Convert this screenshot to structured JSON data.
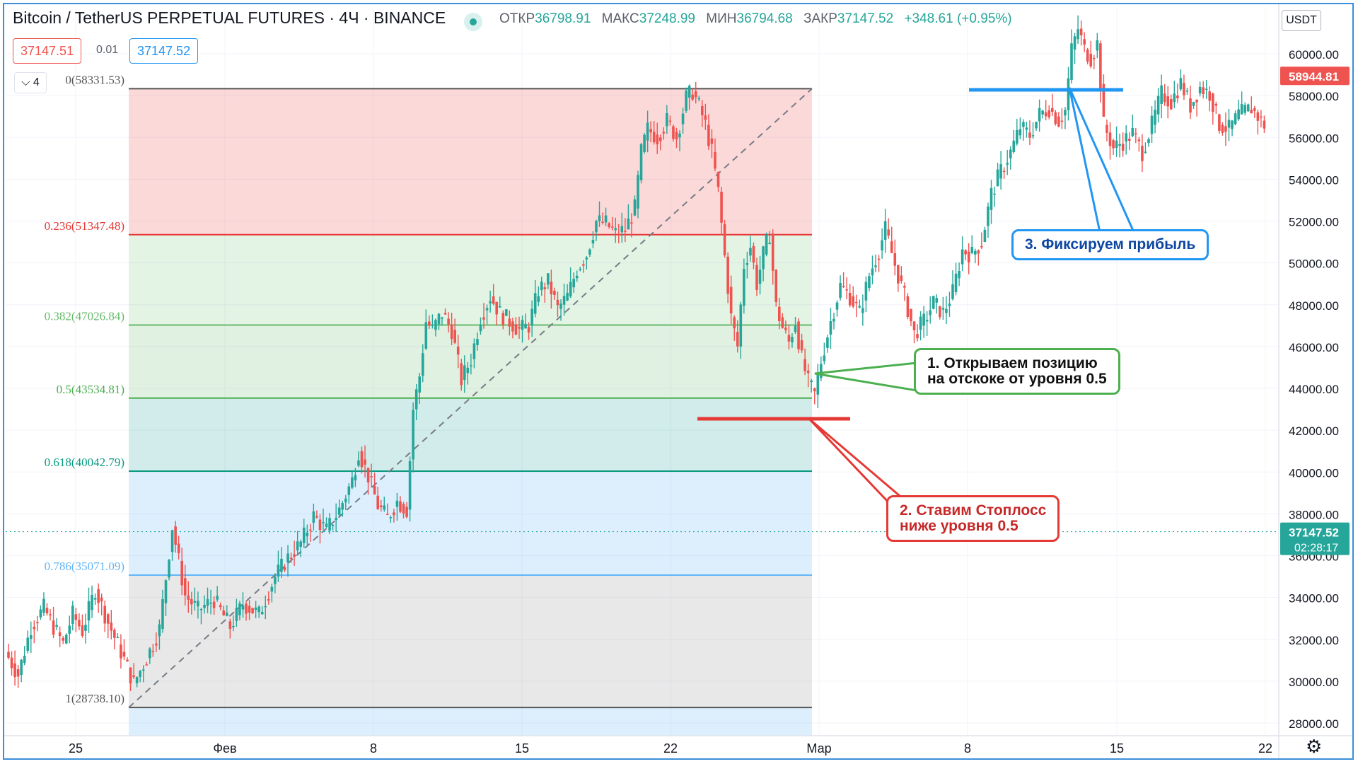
{
  "header": {
    "title": "Bitcoin / TetherUS PERPETUAL FUTURES · 4Ч · BINANCE",
    "ohlc": [
      {
        "k": "ОТКР",
        "v": "36798.91"
      },
      {
        "k": "МАКС",
        "v": "37248.99"
      },
      {
        "k": "МИН",
        "v": "36794.68"
      },
      {
        "k": "ЗАКР",
        "v": "37147.52"
      }
    ],
    "change": "+348.61 (+0.95%)",
    "sell_price": "37147.51",
    "spread": "0.01",
    "buy_price": "37147.52",
    "collapse_label": "4",
    "currency": "USDT"
  },
  "colors": {
    "up": "#26a69a",
    "down": "#ef5350",
    "bg": "#ffffff",
    "grid": "#f0f3fa"
  },
  "chart_data": {
    "type": "candlestick",
    "price_axis": {
      "min": 28000,
      "max": 60000,
      "ticks": [
        "28000.00",
        "30000.00",
        "32000.00",
        "34000.00",
        "36000.00",
        "38000.00",
        "40000.00",
        "42000.00",
        "44000.00",
        "46000.00",
        "48000.00",
        "50000.00",
        "52000.00",
        "54000.00",
        "56000.00",
        "58000.00",
        "60000.00"
      ]
    },
    "time_axis": {
      "ticks": [
        "25",
        "Фев",
        "8",
        "15",
        "22",
        "Мар",
        "8",
        "15",
        "22"
      ]
    },
    "price_labels": [
      {
        "value": "58944.81",
        "price": 58944.81,
        "color": "#ef5350"
      },
      {
        "value": "37147.52",
        "price": 37147.52,
        "color": "#26a69a",
        "countdown": "02:28:17"
      }
    ],
    "fib_levels": [
      {
        "ratio": 0,
        "label": "0(58331.53)",
        "price": 58331.53,
        "color": "#555555"
      },
      {
        "ratio": 0.236,
        "label": "0.236(51347.48)",
        "price": 51347.48,
        "color": "#e53935"
      },
      {
        "ratio": 0.382,
        "label": "0.382(47026.84)",
        "price": 47026.84,
        "color": "#66bb6a"
      },
      {
        "ratio": 0.5,
        "label": "0.5(43534.81)",
        "price": 43534.81,
        "color": "#4caf50"
      },
      {
        "ratio": 0.618,
        "label": "0.618(40042.79)",
        "price": 40042.79,
        "color": "#089981"
      },
      {
        "ratio": 0.786,
        "label": "0.786(35071.09)",
        "price": 35071.09,
        "color": "#64b5f6"
      },
      {
        "ratio": 1,
        "label": "1(28738.10)",
        "price": 28738.1,
        "color": "#555555"
      }
    ],
    "fib_trend": {
      "from": {
        "x": "Jan 28",
        "price": 28738.1
      },
      "to": {
        "x": "Mar 1",
        "price": 58331.53
      }
    },
    "price_path": [
      [
        0,
        31400
      ],
      [
        4,
        30300
      ],
      [
        8,
        32600
      ],
      [
        12,
        33500
      ],
      [
        15,
        32600
      ],
      [
        18,
        31800
      ],
      [
        21,
        33200
      ],
      [
        24,
        32400
      ],
      [
        28,
        34400
      ],
      [
        32,
        32800
      ],
      [
        36,
        31400
      ],
      [
        40,
        29900
      ],
      [
        44,
        31100
      ],
      [
        48,
        32500
      ],
      [
        52,
        37400
      ],
      [
        56,
        34100
      ],
      [
        60,
        33400
      ],
      [
        65,
        33900
      ],
      [
        70,
        32600
      ],
      [
        74,
        33700
      ],
      [
        79,
        33200
      ],
      [
        84,
        35000
      ],
      [
        88,
        35900
      ],
      [
        92,
        36600
      ],
      [
        96,
        37900
      ],
      [
        100,
        37200
      ],
      [
        104,
        38200
      ],
      [
        108,
        39600
      ],
      [
        110,
        41000
      ],
      [
        113,
        39800
      ],
      [
        116,
        38400
      ],
      [
        119,
        37800
      ],
      [
        122,
        38600
      ],
      [
        125,
        38200
      ],
      [
        127,
        43000
      ],
      [
        129,
        44600
      ],
      [
        131,
        47200
      ],
      [
        133,
        46800
      ],
      [
        136,
        47600
      ],
      [
        139,
        46800
      ],
      [
        142,
        44400
      ],
      [
        145,
        45400
      ],
      [
        148,
        47400
      ],
      [
        151,
        48400
      ],
      [
        154,
        47600
      ],
      [
        157,
        47200
      ],
      [
        160,
        46800
      ],
      [
        163,
        47000
      ],
      [
        166,
        48700
      ],
      [
        169,
        49100
      ],
      [
        172,
        47800
      ],
      [
        175,
        48400
      ],
      [
        178,
        49700
      ],
      [
        181,
        50400
      ],
      [
        184,
        52000
      ],
      [
        187,
        51900
      ],
      [
        190,
        51400
      ],
      [
        193,
        51600
      ],
      [
        196,
        52600
      ],
      [
        198,
        55300
      ],
      [
        200,
        56400
      ],
      [
        203,
        56000
      ],
      [
        206,
        56800
      ],
      [
        209,
        56000
      ],
      [
        212,
        57900
      ],
      [
        214,
        58200
      ],
      [
        216,
        57500
      ],
      [
        218,
        56600
      ],
      [
        220,
        55300
      ],
      [
        222,
        53400
      ],
      [
        224,
        50300
      ],
      [
        226,
        47400
      ],
      [
        228,
        46000
      ],
      [
        230,
        49900
      ],
      [
        232,
        50800
      ],
      [
        234,
        49000
      ],
      [
        236,
        50400
      ],
      [
        238,
        51400
      ],
      [
        240,
        47900
      ],
      [
        242,
        46900
      ],
      [
        244,
        46200
      ],
      [
        246,
        47200
      ],
      [
        248,
        45400
      ],
      [
        250,
        44300
      ],
      [
        252,
        43700
      ],
      [
        254,
        45300
      ],
      [
        257,
        47200
      ],
      [
        260,
        48900
      ],
      [
        263,
        48400
      ],
      [
        266,
        47600
      ],
      [
        269,
        49400
      ],
      [
        272,
        50600
      ],
      [
        274,
        51600
      ],
      [
        277,
        49900
      ],
      [
        280,
        48400
      ],
      [
        283,
        46600
      ],
      [
        286,
        47200
      ],
      [
        289,
        48100
      ],
      [
        292,
        47600
      ],
      [
        295,
        48600
      ],
      [
        298,
        50600
      ],
      [
        301,
        50400
      ],
      [
        304,
        51000
      ],
      [
        307,
        53300
      ],
      [
        310,
        54400
      ],
      [
        313,
        55300
      ],
      [
        316,
        56500
      ],
      [
        319,
        56100
      ],
      [
        322,
        57100
      ],
      [
        325,
        57400
      ],
      [
        328,
        56800
      ],
      [
        330,
        57300
      ],
      [
        332,
        60200
      ],
      [
        334,
        61200
      ],
      [
        336,
        60200
      ],
      [
        338,
        59800
      ],
      [
        340,
        60500
      ],
      [
        342,
        56600
      ],
      [
        345,
        55500
      ],
      [
        348,
        55800
      ],
      [
        351,
        56200
      ],
      [
        354,
        55300
      ],
      [
        357,
        56600
      ],
      [
        360,
        58100
      ],
      [
        363,
        57700
      ],
      [
        366,
        58600
      ],
      [
        369,
        57500
      ],
      [
        372,
        58400
      ],
      [
        375,
        58100
      ],
      [
        378,
        56600
      ],
      [
        381,
        56400
      ],
      [
        384,
        57100
      ],
      [
        388,
        57400
      ],
      [
        392,
        56600
      ]
    ],
    "x_span_days": 57
  },
  "annotations": {
    "note1_line1": "1. Открываем позицию",
    "note1_line2": "на отскоке от уровня 0.5",
    "note2_line1": "2. Ставим Стоплосс",
    "note2_line2": "ниже уровня 0.5",
    "note3": "3. Фиксируем прибыль"
  }
}
